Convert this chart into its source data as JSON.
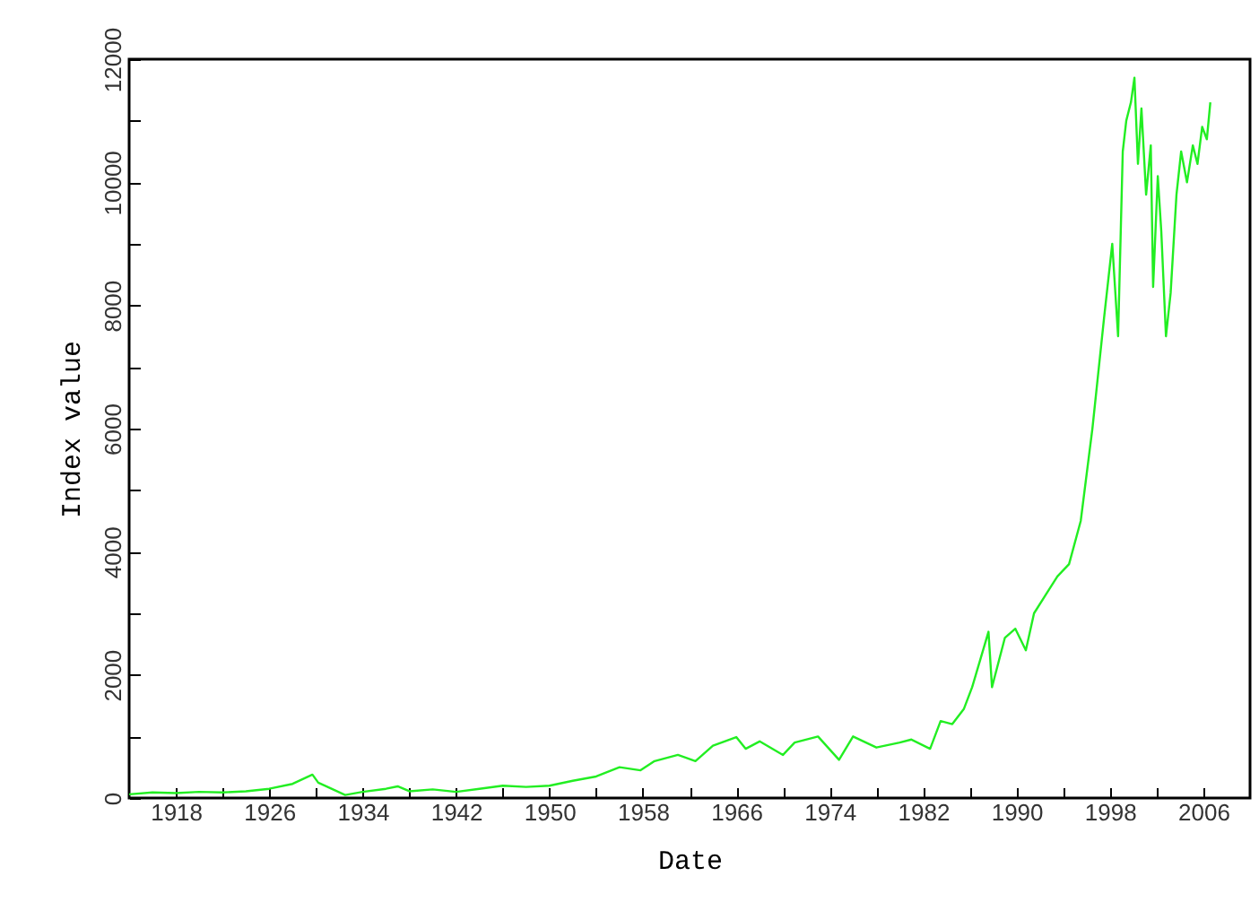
{
  "chart_data": {
    "type": "line",
    "xlabel": "Date",
    "ylabel": "Index value",
    "xlim": [
      1914,
      2010
    ],
    "xticks": [
      1918,
      {
        "value": 1922,
        "label": null
      },
      1926,
      {
        "value": 1930,
        "label": null
      },
      1934,
      {
        "value": 1938,
        "label": null
      },
      1942,
      {
        "value": 1946,
        "label": null
      },
      1950,
      {
        "value": 1954,
        "label": null
      },
      1958,
      {
        "value": 1962,
        "label": null
      },
      1966,
      {
        "value": 1970,
        "label": null
      },
      1974,
      {
        "value": 1978,
        "label": null
      },
      1982,
      {
        "value": 1986,
        "label": null
      },
      1990,
      {
        "value": 1994,
        "label": null
      },
      1998,
      {
        "value": 2002,
        "label": null
      },
      2006
    ],
    "ylim": [
      0,
      12000
    ],
    "yticks": [
      0,
      {
        "value": 1000,
        "label": null
      },
      2000,
      {
        "value": 3000,
        "label": null
      },
      4000,
      {
        "value": 5000,
        "label": null
      },
      6000,
      {
        "value": 7000,
        "label": null
      },
      8000,
      {
        "value": 9000,
        "label": null
      },
      10000,
      {
        "value": 11000,
        "label": null
      },
      12000
    ],
    "grid": false,
    "marker": "none",
    "line_style": "solid",
    "legend": false,
    "series": [
      {
        "color": "#22ee22",
        "x": [
          1914,
          1916,
          1918,
          1920,
          1922,
          1924,
          1926,
          1928,
          1929.7,
          1930.2,
          1931,
          1932.5,
          1934,
          1936,
          1937,
          1938,
          1940,
          1942,
          1944,
          1946,
          1948,
          1950,
          1952,
          1954,
          1956,
          1957.8,
          1959,
          1961,
          1962.5,
          1964,
          1966,
          1966.8,
          1968,
          1970,
          1971,
          1973,
          1974.8,
          1976,
          1978,
          1980,
          1981,
          1982.6,
          1983.5,
          1984.5,
          1985.5,
          1986.2,
          1987.6,
          1987.9,
          1989,
          1989.9,
          1990.8,
          1991.5,
          1992.5,
          1993.5,
          1994.5,
          1995.5,
          1996.5,
          1997.5,
          1998.2,
          1998.7,
          1999.1,
          1999.4,
          1999.8,
          2000.1,
          2000.4,
          2000.7,
          2001.1,
          2001.5,
          2001.7,
          2002.1,
          2002.4,
          2002.8,
          2003.2,
          2003.7,
          2004.1,
          2004.6,
          2005.1,
          2005.5,
          2005.9,
          2006.3,
          2006.6
        ],
        "values": [
          60,
          90,
          80,
          100,
          90,
          110,
          150,
          230,
          380,
          250,
          180,
          50,
          100,
          150,
          190,
          110,
          140,
          100,
          150,
          200,
          180,
          200,
          280,
          350,
          500,
          450,
          600,
          700,
          600,
          850,
          990,
          800,
          920,
          700,
          900,
          1000,
          620,
          1000,
          820,
          900,
          950,
          800,
          1250,
          1200,
          1450,
          1800,
          2700,
          1800,
          2600,
          2750,
          2400,
          3000,
          3300,
          3600,
          3800,
          4500,
          6000,
          7800,
          9000,
          7500,
          10500,
          11000,
          11300,
          11700,
          10300,
          11200,
          9800,
          10600,
          8300,
          10100,
          9200,
          7500,
          8200,
          9800,
          10500,
          10000,
          10600,
          10300,
          10900,
          10700,
          11300
        ]
      }
    ]
  }
}
